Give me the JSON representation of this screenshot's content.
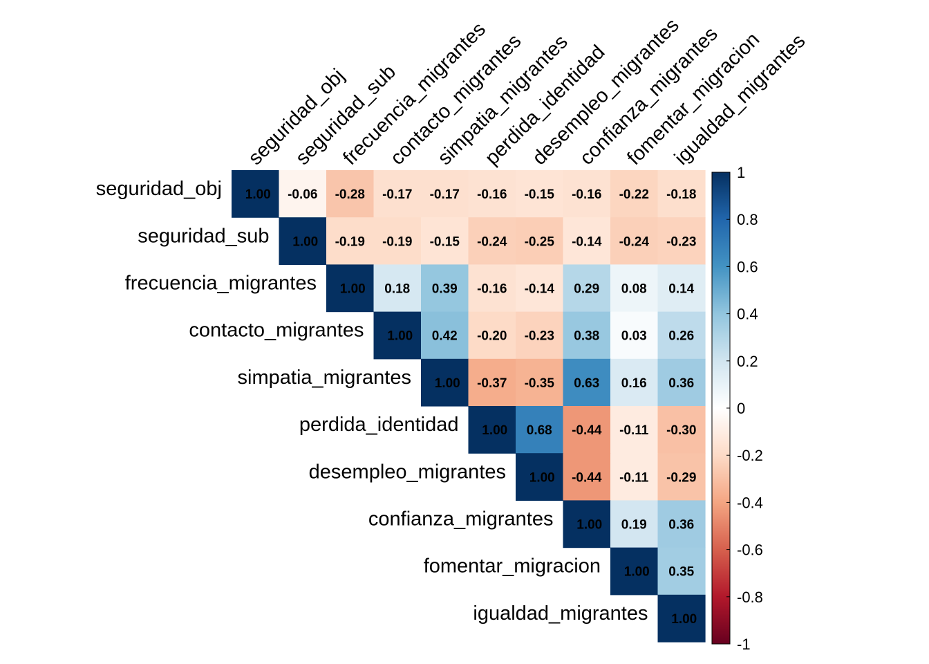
{
  "chart_data": {
    "type": "heatmap",
    "variables": [
      "seguridad_obj",
      "seguridad_sub",
      "frecuencia_migrantes",
      "contacto_migrantes",
      "simpatia_migrantes",
      "perdida_identidad",
      "desempleo_migrantes",
      "confianza_migrantes",
      "fomentar_migracion",
      "igualdad_migrantes"
    ],
    "matrix": [
      [
        1.0,
        -0.06,
        -0.28,
        -0.17,
        -0.17,
        -0.16,
        -0.15,
        -0.16,
        -0.22,
        -0.18
      ],
      [
        null,
        1.0,
        -0.19,
        -0.19,
        -0.15,
        -0.24,
        -0.25,
        -0.14,
        -0.24,
        -0.23
      ],
      [
        null,
        null,
        1.0,
        0.18,
        0.39,
        -0.16,
        -0.14,
        0.29,
        0.08,
        0.14
      ],
      [
        null,
        null,
        null,
        1.0,
        0.42,
        -0.2,
        -0.23,
        0.38,
        0.03,
        0.26
      ],
      [
        null,
        null,
        null,
        null,
        1.0,
        -0.37,
        -0.35,
        0.63,
        0.16,
        0.36
      ],
      [
        null,
        null,
        null,
        null,
        null,
        1.0,
        0.68,
        -0.44,
        -0.11,
        -0.3
      ],
      [
        null,
        null,
        null,
        null,
        null,
        null,
        1.0,
        -0.44,
        -0.11,
        -0.29
      ],
      [
        null,
        null,
        null,
        null,
        null,
        null,
        null,
        1.0,
        0.19,
        0.36
      ],
      [
        null,
        null,
        null,
        null,
        null,
        null,
        null,
        null,
        1.0,
        0.35
      ],
      [
        null,
        null,
        null,
        null,
        null,
        null,
        null,
        null,
        null,
        1.0
      ]
    ],
    "triangle": "upper",
    "value_format": "0.00",
    "colorbar": {
      "range": [
        -1,
        1
      ],
      "ticks": [
        1,
        0.8,
        0.6,
        0.4,
        0.2,
        0,
        -0.2,
        -0.4,
        -0.6,
        -0.8,
        -1
      ],
      "tick_labels": [
        "1",
        "0.8",
        "0.6",
        "0.4",
        "0.2",
        "0",
        "-0.2",
        "-0.4",
        "-0.6",
        "-0.8",
        "-1"
      ],
      "colors": [
        "#67001F",
        "#B2182B",
        "#D6604D",
        "#F4A582",
        "#FDDBC7",
        "#FFFFFF",
        "#D1E5F0",
        "#92C5DE",
        "#4393C3",
        "#2166AC",
        "#053061"
      ]
    },
    "title": "",
    "xlabel": "",
    "ylabel": ""
  }
}
